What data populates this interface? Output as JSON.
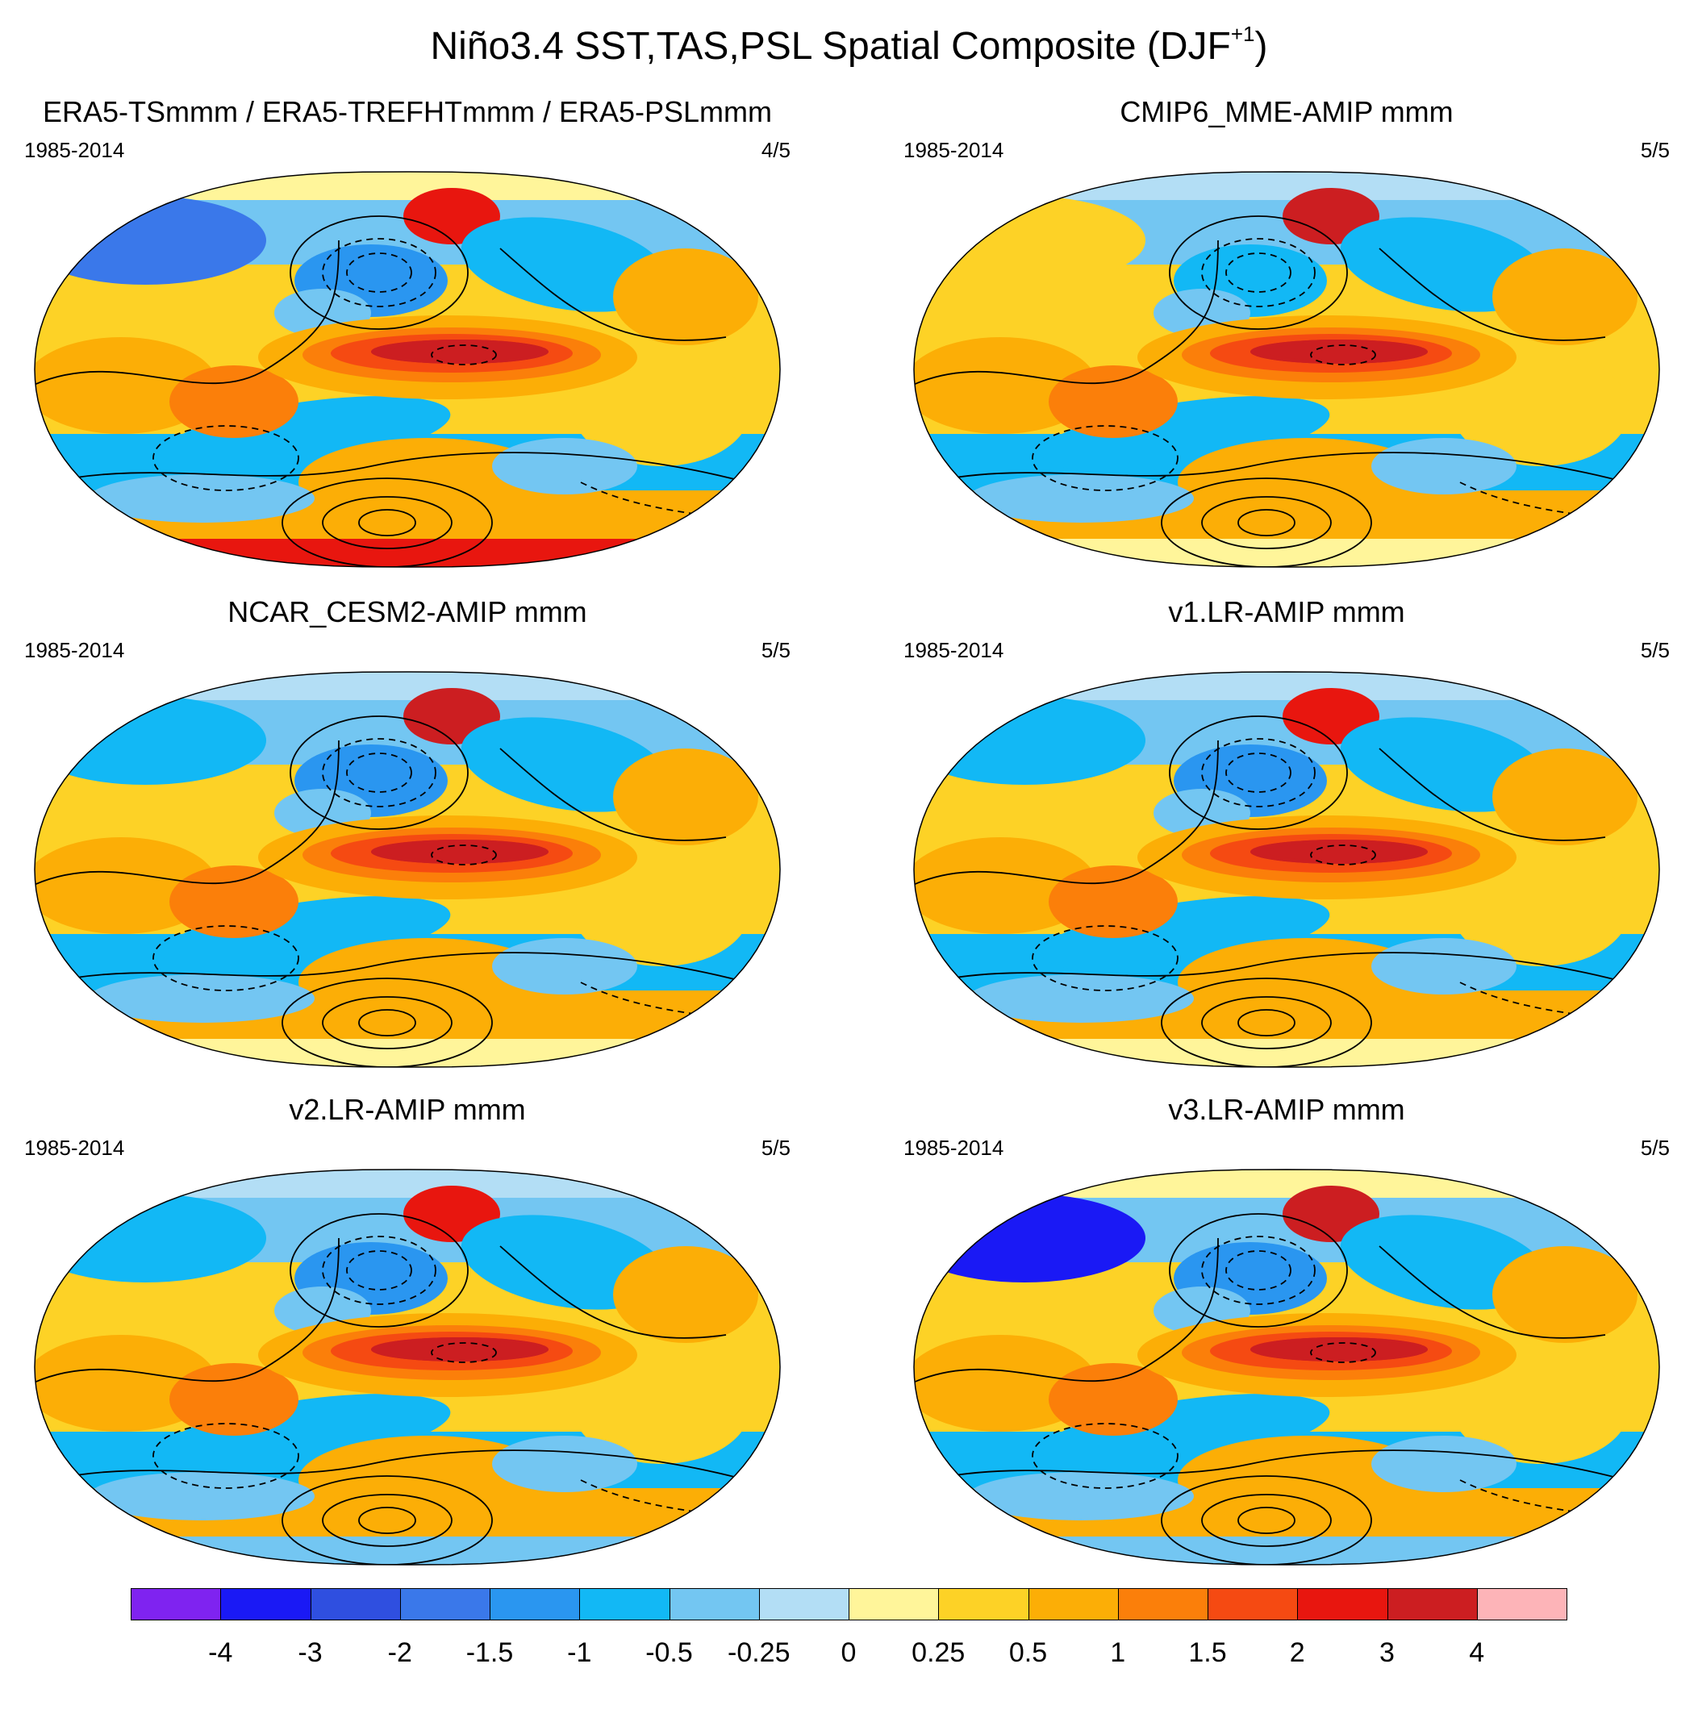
{
  "title": "Niño3.4 SST,TAS,PSL Spatial Composite (DJF",
  "title_superscript": "+1",
  "title_suffix": ")",
  "panels": [
    {
      "title": "ERA5-TSmmm / ERA5-TREFHTmmm / ERA5-PSLmmm",
      "period": "1985-2014",
      "count": "4/5"
    },
    {
      "title": "CMIP6_MME-AMIP  mmm",
      "period": "1985-2014",
      "count": "5/5"
    },
    {
      "title": "NCAR_CESM2-AMIP  mmm",
      "period": "1985-2014",
      "count": "5/5"
    },
    {
      "title": "v1.LR-AMIP  mmm",
      "period": "1985-2014",
      "count": "5/5"
    },
    {
      "title": "v2.LR-AMIP  mmm",
      "period": "1985-2014",
      "count": "5/5"
    },
    {
      "title": "v3.LR-AMIP  mmm",
      "period": "1985-2014",
      "count": "5/5"
    }
  ],
  "colorbar": {
    "colors": [
      "#7f23f0",
      "#1a19f5",
      "#2f4fe0",
      "#3a78ea",
      "#2a96f0",
      "#12b8f5",
      "#73c6f2",
      "#b3def5",
      "#fff59a",
      "#fdd226",
      "#fcae06",
      "#fb7f0a",
      "#f54a12",
      "#e8160f",
      "#cc1e21",
      "#fdb4b8"
    ],
    "ticks": [
      "-4",
      "-3",
      "-2",
      "-1.5",
      "-1",
      "-0.5",
      "-0.25",
      "0",
      "0.25",
      "0.5",
      "1",
      "1.5",
      "2",
      "3",
      "4"
    ]
  }
}
